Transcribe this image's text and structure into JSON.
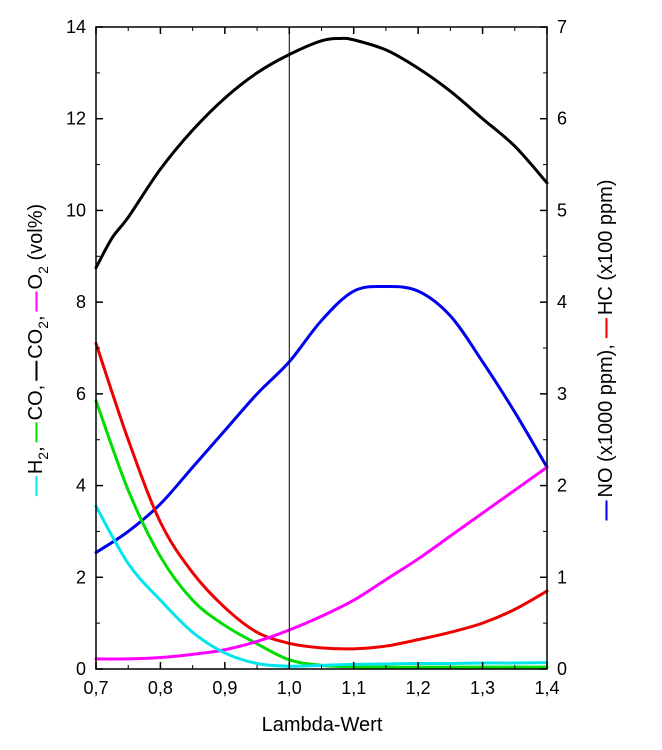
{
  "chart_data": {
    "type": "line",
    "xlabel": "Lambda-Wert",
    "ylabel_left": {
      "parts": [
        {
          "text": "H",
          "sub": "2",
          "suffix": ",",
          "color": "#00e5ee"
        },
        {
          "text": "CO",
          "sub": "",
          "suffix": ",",
          "color": "#00dd00"
        },
        {
          "text": "CO",
          "sub": "2",
          "suffix": ",",
          "color": "#000000"
        },
        {
          "text": "O",
          "sub": "2",
          "suffix": " (vol%)",
          "color": "#ff00ff"
        }
      ]
    },
    "ylabel_right": {
      "parts": [
        {
          "text": "NO (x1000 ppm),",
          "color": "#0000ee"
        },
        {
          "text": "HC (x100 ppm)",
          "color": "#ee0000"
        }
      ]
    },
    "xlim": [
      0.7,
      1.4
    ],
    "ylim_left": [
      0,
      14
    ],
    "ylim_right": [
      0,
      7
    ],
    "x_ticks": [
      0.7,
      0.8,
      0.9,
      1.0,
      1.1,
      1.2,
      1.3,
      1.4
    ],
    "x_tick_labels": [
      "0,7",
      "0,8",
      "0,9",
      "1,0",
      "1,1",
      "1,2",
      "1,3",
      "1,4"
    ],
    "y_left_ticks": [
      0,
      2,
      4,
      6,
      8,
      10,
      12,
      14
    ],
    "y_left_tick_labels": [
      "0",
      "2",
      "4",
      "6",
      "8",
      "10",
      "12",
      "14"
    ],
    "y_right_ticks": [
      0,
      1,
      2,
      3,
      4,
      5,
      6,
      7
    ],
    "y_right_tick_labels": [
      "0",
      "1",
      "2",
      "3",
      "4",
      "5",
      "6",
      "7"
    ],
    "reference_line_x": 1.0,
    "grid": false,
    "series": [
      {
        "id": "co2",
        "axis": "left",
        "color": "#000000",
        "x": [
          0.7,
          0.725,
          0.75,
          0.8,
          0.85,
          0.9,
          0.95,
          1.0,
          1.05,
          1.08,
          1.1,
          1.15,
          1.2,
          1.25,
          1.3,
          1.35,
          1.4
        ],
        "y": [
          8.75,
          9.4,
          9.85,
          10.9,
          11.75,
          12.45,
          13.0,
          13.4,
          13.7,
          13.75,
          13.72,
          13.5,
          13.1,
          12.6,
          12.0,
          11.4,
          10.6
        ]
      },
      {
        "id": "no",
        "axis": "right",
        "color": "#0000ee",
        "x": [
          0.7,
          0.75,
          0.8,
          0.85,
          0.9,
          0.95,
          1.0,
          1.05,
          1.1,
          1.15,
          1.2,
          1.25,
          1.3,
          1.35,
          1.4
        ],
        "y": [
          1.27,
          1.5,
          1.8,
          2.2,
          2.6,
          3.0,
          3.35,
          3.8,
          4.12,
          4.17,
          4.12,
          3.85,
          3.35,
          2.8,
          2.2
        ]
      },
      {
        "id": "hc",
        "axis": "right",
        "color": "#ee0000",
        "x": [
          0.7,
          0.75,
          0.8,
          0.85,
          0.9,
          0.95,
          1.0,
          1.05,
          1.1,
          1.15,
          1.2,
          1.25,
          1.3,
          1.35,
          1.4
        ],
        "y": [
          3.55,
          2.5,
          1.6,
          1.05,
          0.67,
          0.4,
          0.28,
          0.23,
          0.22,
          0.25,
          0.32,
          0.4,
          0.5,
          0.65,
          0.85
        ]
      },
      {
        "id": "co",
        "axis": "left",
        "color": "#00dd00",
        "x": [
          0.7,
          0.75,
          0.8,
          0.85,
          0.9,
          0.95,
          1.0,
          1.05,
          1.1,
          1.15,
          1.2,
          1.25,
          1.3,
          1.35,
          1.4
        ],
        "y": [
          5.85,
          3.9,
          2.45,
          1.5,
          0.95,
          0.55,
          0.2,
          0.08,
          0.05,
          0.04,
          0.04,
          0.04,
          0.04,
          0.04,
          0.04
        ]
      },
      {
        "id": "o2",
        "axis": "left",
        "color": "#ff00ff",
        "x": [
          0.7,
          0.75,
          0.8,
          0.85,
          0.9,
          0.95,
          1.0,
          1.05,
          1.1,
          1.15,
          1.2,
          1.25,
          1.3,
          1.35,
          1.4
        ],
        "y": [
          0.22,
          0.22,
          0.25,
          0.32,
          0.42,
          0.6,
          0.85,
          1.15,
          1.5,
          1.95,
          2.4,
          2.9,
          3.4,
          3.9,
          4.4
        ]
      },
      {
        "id": "h2",
        "axis": "left",
        "color": "#00e5ee",
        "x": [
          0.7,
          0.75,
          0.8,
          0.85,
          0.9,
          0.95,
          1.0,
          1.05,
          1.1,
          1.15,
          1.2,
          1.25,
          1.3,
          1.35,
          1.4
        ],
        "y": [
          3.55,
          2.3,
          1.5,
          0.8,
          0.35,
          0.12,
          0.06,
          0.08,
          0.1,
          0.11,
          0.12,
          0.12,
          0.13,
          0.13,
          0.14
        ]
      }
    ]
  }
}
